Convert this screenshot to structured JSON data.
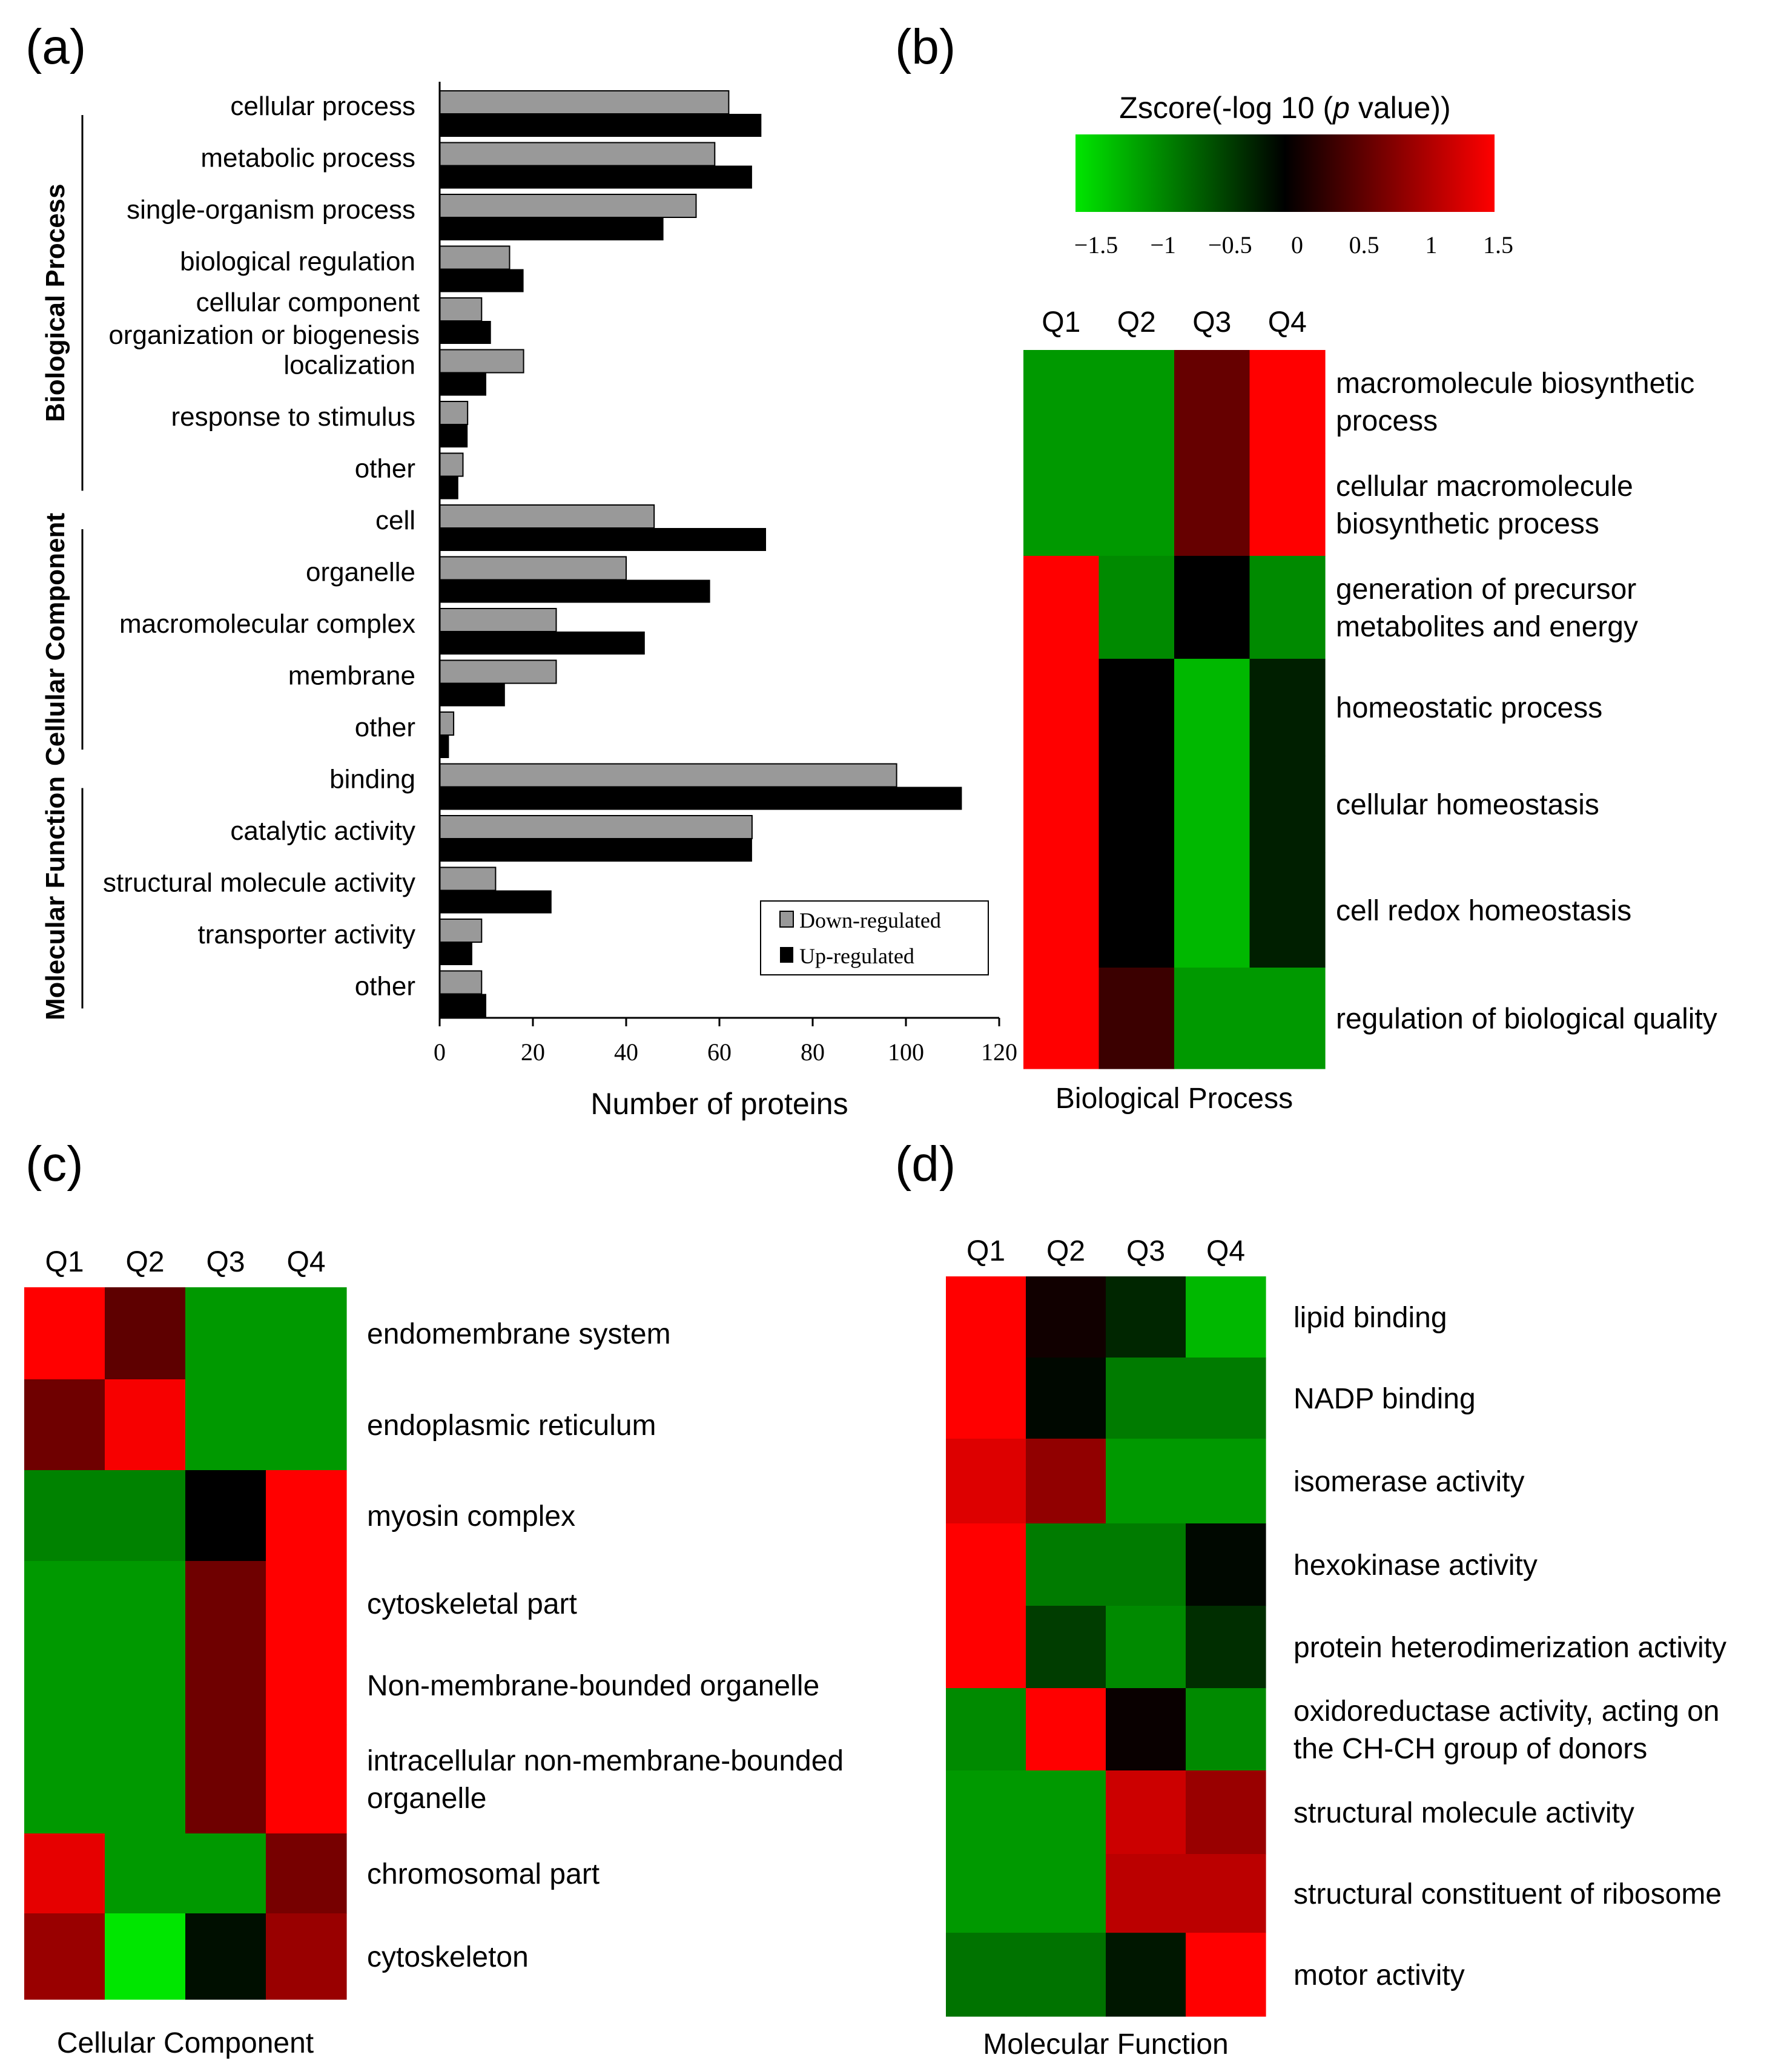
{
  "panels": {
    "a": {
      "label": "(a)"
    },
    "b": {
      "label": "(b)"
    },
    "c": {
      "label": "(c)"
    },
    "d": {
      "label": "(d)"
    }
  },
  "colorbar": {
    "title_pre": "Zscore(-log 10 (",
    "title_italic": "p",
    "title_post": " value))",
    "ticks": [
      "−1.5",
      "−1",
      "−0.5",
      "0",
      "0.5",
      "1",
      "1.5"
    ],
    "colors": {
      "low": "#00e600",
      "mid": "#000000",
      "high": "#ff0000"
    }
  },
  "chart_data": [
    {
      "panel": "a",
      "type": "bar",
      "orientation": "horizontal",
      "xlabel": "Number of proteins",
      "xlim": [
        0,
        120
      ],
      "xticks": [
        "0",
        "20",
        "40",
        "60",
        "80",
        "100",
        "120"
      ],
      "legend": [
        "Down-regulated",
        "Up-regulated"
      ],
      "legend_position": "bottom-right",
      "series_colors": {
        "down": "#999999",
        "up": "#000000"
      },
      "groups": [
        {
          "name": "Biological Process",
          "categories": [
            {
              "label": [
                "cellular process"
              ],
              "down": 62,
              "up": 69
            },
            {
              "label": [
                "metabolic process"
              ],
              "down": 59,
              "up": 67
            },
            {
              "label": [
                "single-organism process"
              ],
              "down": 55,
              "up": 48
            },
            {
              "label": [
                "biological regulation"
              ],
              "down": 15,
              "up": 18
            },
            {
              "label": [
                "cellular component",
                "organization or biogenesis"
              ],
              "down": 9,
              "up": 11
            },
            {
              "label": [
                "localization"
              ],
              "down": 18,
              "up": 10
            },
            {
              "label": [
                "response to stimulus"
              ],
              "down": 6,
              "up": 6
            },
            {
              "label": [
                "other"
              ],
              "down": 5,
              "up": 4
            }
          ]
        },
        {
          "name": "Cellular Component",
          "categories": [
            {
              "label": [
                "cell"
              ],
              "down": 46,
              "up": 70
            },
            {
              "label": [
                "organelle"
              ],
              "down": 40,
              "up": 58
            },
            {
              "label": [
                "macromolecular complex"
              ],
              "down": 25,
              "up": 44
            },
            {
              "label": [
                "membrane"
              ],
              "down": 25,
              "up": 14
            },
            {
              "label": [
                "other"
              ],
              "down": 3,
              "up": 2
            }
          ]
        },
        {
          "name": "Molecular Function",
          "categories": [
            {
              "label": [
                "binding"
              ],
              "down": 98,
              "up": 112
            },
            {
              "label": [
                "catalytic activity"
              ],
              "down": 67,
              "up": 67
            },
            {
              "label": [
                "structural molecule activity"
              ],
              "down": 12,
              "up": 24
            },
            {
              "label": [
                "transporter activity"
              ],
              "down": 9,
              "up": 7
            },
            {
              "label": [
                "other"
              ],
              "down": 9,
              "up": 10
            }
          ]
        }
      ]
    },
    {
      "panel": "b",
      "type": "heatmap",
      "title": "Biological Process",
      "columns": [
        "Q1",
        "Q2",
        "Q3",
        "Q4"
      ],
      "value_range": [
        -1.5,
        1.5
      ],
      "rows": [
        {
          "label": [
            "macromolecule biosynthetic",
            "process"
          ],
          "values": [
            -1.0,
            -1.0,
            0.6,
            1.5
          ]
        },
        {
          "label": [
            "cellular macromolecule",
            "biosynthetic  process"
          ],
          "values": [
            -1.0,
            -1.0,
            0.6,
            1.5
          ]
        },
        {
          "label": [
            "generation of precursor",
            "metabolites and energy"
          ],
          "values": [
            1.5,
            -0.9,
            0.0,
            -0.9
          ]
        },
        {
          "label": [
            "homeostatic process"
          ],
          "values": [
            1.5,
            0.0,
            -1.2,
            -0.2
          ]
        },
        {
          "label": [
            "cellular homeostasis"
          ],
          "values": [
            1.5,
            0.0,
            -1.2,
            -0.2
          ]
        },
        {
          "label": [
            "cell redox homeostasis"
          ],
          "values": [
            1.5,
            0.0,
            -1.2,
            -0.2
          ]
        },
        {
          "label": [
            "regulation of biological quality"
          ],
          "values": [
            1.5,
            0.35,
            -1.0,
            -1.0
          ]
        }
      ]
    },
    {
      "panel": "c",
      "type": "heatmap",
      "title": "Cellular Component",
      "columns": [
        "Q1",
        "Q2",
        "Q3",
        "Q4"
      ],
      "value_range": [
        -1.5,
        1.5
      ],
      "rows": [
        {
          "label": [
            "endomembrane system"
          ],
          "values": [
            1.5,
            0.55,
            -1.0,
            -1.0
          ]
        },
        {
          "label": [
            "endoplasmic reticulum"
          ],
          "values": [
            0.65,
            1.45,
            -1.0,
            -1.0
          ]
        },
        {
          "label": [
            "myosin complex"
          ],
          "values": [
            -0.85,
            -0.85,
            0.0,
            1.5
          ]
        },
        {
          "label": [
            "cytoskeletal part"
          ],
          "values": [
            -1.0,
            -1.0,
            0.65,
            1.5
          ]
        },
        {
          "label": [
            "Non-membrane-bounded organelle"
          ],
          "values": [
            -1.0,
            -1.0,
            0.65,
            1.5
          ]
        },
        {
          "label": [
            "intracellular non-membrane-bounded",
            "organelle"
          ],
          "values": [
            -1.0,
            -1.0,
            0.65,
            1.5
          ]
        },
        {
          "label": [
            "chromosomal part"
          ],
          "values": [
            1.35,
            -1.0,
            -1.0,
            0.7
          ]
        },
        {
          "label": [
            "cytoskeleton"
          ],
          "values": [
            0.9,
            -1.5,
            -0.1,
            0.9
          ]
        }
      ]
    },
    {
      "panel": "d",
      "type": "heatmap",
      "title": "Molecular Function",
      "columns": [
        "Q1",
        "Q2",
        "Q3",
        "Q4"
      ],
      "value_range": [
        -1.5,
        1.5
      ],
      "rows": [
        {
          "label": [
            "lipid binding"
          ],
          "values": [
            1.5,
            0.1,
            -0.25,
            -1.2
          ]
        },
        {
          "label": [
            "NADP binding"
          ],
          "values": [
            1.5,
            -0.05,
            -0.8,
            -0.8
          ]
        },
        {
          "label": [
            "isomerase activity"
          ],
          "values": [
            1.3,
            0.85,
            -1.0,
            -1.0
          ]
        },
        {
          "label": [
            "hexokinase activity"
          ],
          "values": [
            1.5,
            -0.8,
            -0.8,
            -0.05
          ]
        },
        {
          "label": [
            "protein heterodimerization activity"
          ],
          "values": [
            1.5,
            -0.4,
            -0.9,
            -0.3
          ]
        },
        {
          "label": [
            "oxidoreductase activity, acting on",
            "the CH-CH group of donors"
          ],
          "values": [
            -0.9,
            1.5,
            0.05,
            -0.9
          ]
        },
        {
          "label": [
            "structural molecule activity"
          ],
          "values": [
            -1.0,
            -1.0,
            1.2,
            0.9
          ]
        },
        {
          "label": [
            "structural constituent of ribosome"
          ],
          "values": [
            -1.0,
            -1.0,
            1.1,
            1.1
          ]
        },
        {
          "label": [
            "motor activity"
          ],
          "values": [
            -0.75,
            -0.75,
            -0.15,
            1.5
          ]
        }
      ]
    }
  ]
}
